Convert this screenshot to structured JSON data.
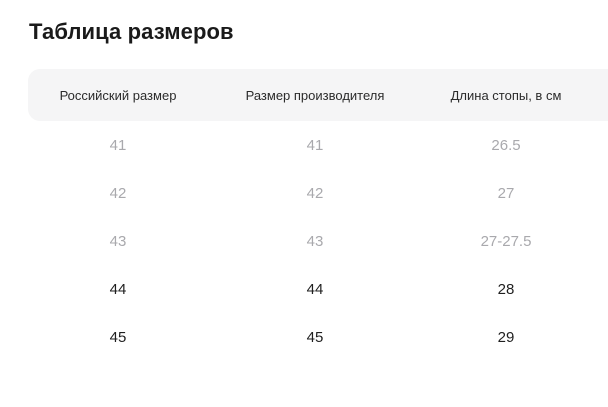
{
  "title": "Таблица размеров",
  "table": {
    "headers": [
      "Российский размер",
      "Размер производителя",
      "Длина стопы, в см"
    ],
    "rows": [
      {
        "cells": [
          "41",
          "41",
          "26.5"
        ],
        "available": false
      },
      {
        "cells": [
          "42",
          "42",
          "27"
        ],
        "available": false
      },
      {
        "cells": [
          "43",
          "43",
          "27-27.5"
        ],
        "available": false
      },
      {
        "cells": [
          "44",
          "44",
          "28"
        ],
        "available": true
      },
      {
        "cells": [
          "45",
          "45",
          "29"
        ],
        "available": true
      }
    ]
  },
  "colors": {
    "header_bg": "#f5f5f6",
    "text_active": "#1f1f1f",
    "text_muted": "#a9a9ad"
  }
}
